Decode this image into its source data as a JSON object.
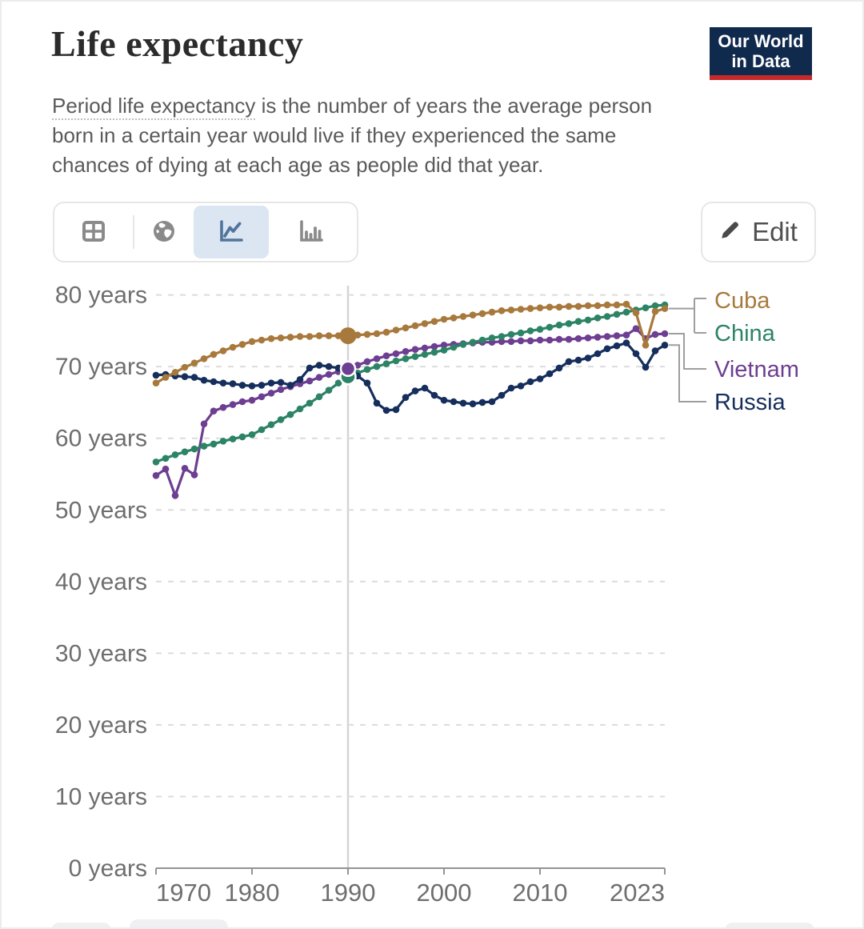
{
  "header": {
    "title": "Life expectancy",
    "logo_line1": "Our World",
    "logo_line2": "in Data",
    "logo_bg": "#102A4E",
    "logo_accent": "#C5292A"
  },
  "subtitle": {
    "term": "Period life expectancy",
    "line1_rest": " is the number of years the average person",
    "line2": "born in a certain year would live if they experienced the same",
    "line3": "chances of dying at each age as people did that year."
  },
  "toolbar": {
    "views": [
      "table",
      "map",
      "line-chart",
      "bar-chart"
    ],
    "active_view": "line-chart",
    "edit_label": "Edit",
    "active_bg": "#dbe6f2",
    "icon_gray": "#8a8a8a",
    "icon_active_blue": "#52749c"
  },
  "chart_data": {
    "type": "line",
    "title": "Life expectancy",
    "x_start": 1970,
    "x_end": 2023,
    "x_ticks": [
      1970,
      1980,
      1990,
      2000,
      2010,
      2023
    ],
    "y_ticks": [
      0,
      10,
      20,
      30,
      40,
      50,
      60,
      70,
      80
    ],
    "y_tick_suffix": " years",
    "ylim": [
      0,
      80
    ],
    "highlight_year": 1990,
    "grid": "dashed",
    "legend_position": "right",
    "series": [
      {
        "name": "Cuba",
        "color": "#A8793C",
        "highlight_value_1990": 74.3,
        "values": [
          67.7,
          68.5,
          69.2,
          69.9,
          70.5,
          71.1,
          71.7,
          72.2,
          72.7,
          73.1,
          73.5,
          73.7,
          73.9,
          74.0,
          74.1,
          74.2,
          74.2,
          74.3,
          74.3,
          74.3,
          74.3,
          74.4,
          74.5,
          74.6,
          74.8,
          75.1,
          75.4,
          75.7,
          76.0,
          76.3,
          76.6,
          76.8,
          77.0,
          77.2,
          77.4,
          77.6,
          77.8,
          77.9,
          78.0,
          78.1,
          78.2,
          78.3,
          78.3,
          78.4,
          78.4,
          78.5,
          78.5,
          78.6,
          78.6,
          78.7,
          77.5,
          73.0,
          77.7,
          78.1
        ]
      },
      {
        "name": "China",
        "color": "#2C8465",
        "highlight_value_1990": 68.6,
        "values": [
          56.7,
          57.2,
          57.7,
          58.1,
          58.5,
          58.9,
          59.2,
          59.6,
          59.9,
          60.2,
          60.5,
          61.2,
          61.9,
          62.6,
          63.3,
          64.1,
          64.9,
          65.8,
          66.7,
          67.7,
          68.6,
          69.1,
          69.6,
          70.0,
          70.4,
          70.8,
          71.1,
          71.4,
          71.7,
          72.0,
          72.3,
          72.7,
          73.1,
          73.4,
          73.7,
          74.0,
          74.2,
          74.5,
          74.7,
          75.0,
          75.2,
          75.5,
          75.8,
          76.0,
          76.3,
          76.5,
          76.8,
          77.0,
          77.3,
          77.6,
          77.9,
          78.2,
          78.5,
          78.6
        ]
      },
      {
        "name": "Vietnam",
        "color": "#6D3E91",
        "highlight_value_1990": 69.7,
        "values": [
          54.8,
          55.7,
          52.0,
          55.8,
          54.9,
          62.0,
          63.8,
          64.3,
          64.7,
          65.1,
          65.3,
          65.8,
          66.3,
          66.8,
          67.2,
          67.6,
          68.0,
          68.5,
          68.9,
          69.3,
          69.7,
          70.2,
          70.7,
          71.1,
          71.5,
          71.8,
          72.1,
          72.4,
          72.6,
          72.8,
          73.0,
          73.1,
          73.2,
          73.3,
          73.4,
          73.4,
          73.5,
          73.5,
          73.6,
          73.6,
          73.7,
          73.7,
          73.8,
          73.8,
          73.9,
          74.0,
          74.1,
          74.2,
          74.3,
          74.4,
          75.3,
          73.9,
          74.5,
          74.6
        ]
      },
      {
        "name": "Russia",
        "color": "#152E5C",
        "highlight_value_1990": 69.6,
        "values": [
          68.8,
          68.9,
          68.7,
          68.6,
          68.5,
          68.1,
          67.9,
          67.7,
          67.6,
          67.4,
          67.3,
          67.4,
          67.7,
          67.8,
          67.4,
          68.2,
          69.8,
          70.2,
          70.0,
          69.8,
          69.6,
          68.7,
          67.7,
          64.9,
          63.9,
          64.0,
          65.7,
          66.6,
          67.0,
          66.0,
          65.3,
          65.1,
          64.9,
          64.8,
          65.0,
          65.1,
          66.0,
          67.0,
          67.3,
          67.9,
          68.3,
          69.0,
          69.8,
          70.7,
          70.9,
          71.2,
          71.8,
          72.5,
          72.9,
          73.3,
          71.8,
          69.9,
          72.2,
          73.0
        ]
      }
    ]
  }
}
